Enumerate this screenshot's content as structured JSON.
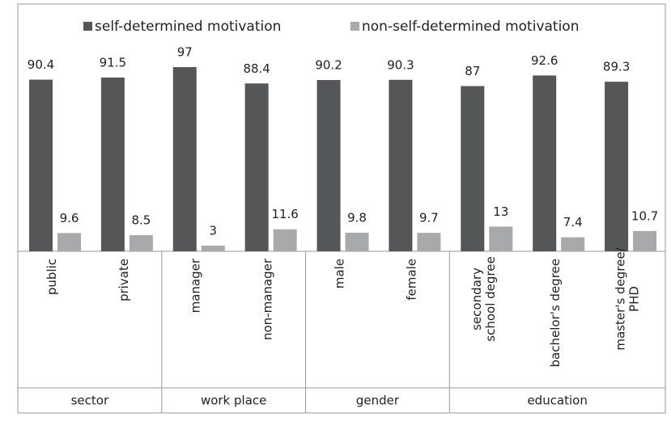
{
  "chart_data": {
    "type": "bar",
    "series": [
      {
        "name": "self-determined motivation",
        "color": "#545658",
        "values": [
          90.4,
          91.5,
          97,
          88.4,
          90.2,
          90.3,
          87,
          92.6,
          89.3
        ]
      },
      {
        "name": "non-self-determined motivation",
        "color": "#a7a9ab",
        "values": [
          9.6,
          8.5,
          3,
          11.6,
          9.8,
          9.7,
          13,
          7.4,
          10.7
        ]
      }
    ],
    "groups": [
      {
        "name": "sector",
        "categories": [
          [
            "public"
          ],
          [
            "private"
          ]
        ]
      },
      {
        "name": "work place",
        "categories": [
          [
            "manager"
          ],
          [
            "non-manager"
          ]
        ]
      },
      {
        "name": "gender",
        "categories": [
          [
            "male"
          ],
          [
            "female"
          ]
        ]
      },
      {
        "name": "education",
        "categories": [
          [
            "secondary",
            "school degree"
          ],
          [
            "bachelor's degree"
          ],
          [
            "master's degree/",
            "PHD"
          ]
        ]
      }
    ],
    "legend": "top"
  }
}
